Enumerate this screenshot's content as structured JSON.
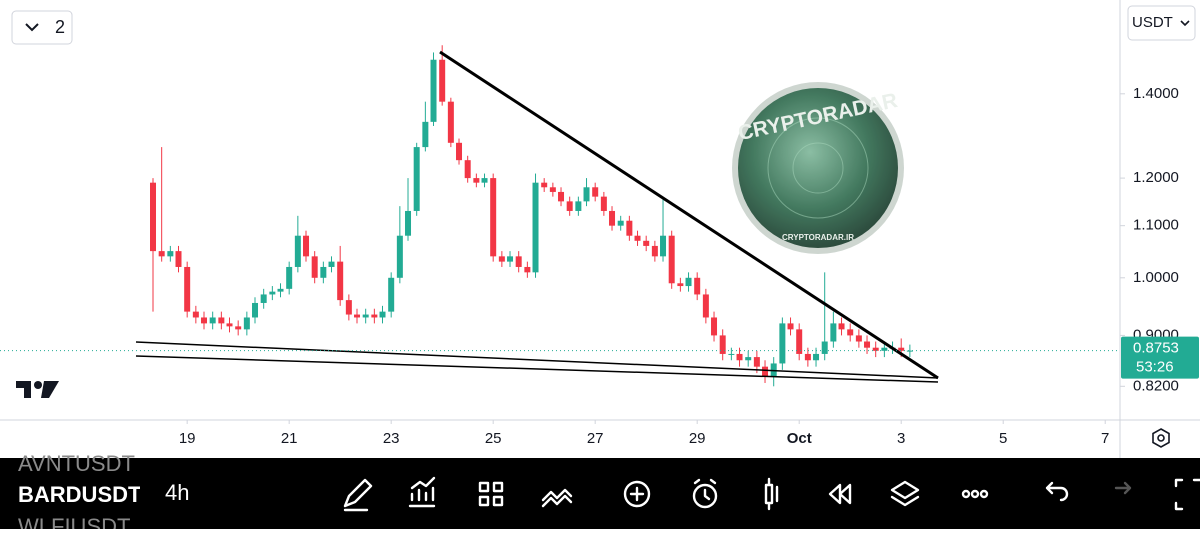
{
  "chart_data": {
    "type": "candlestick",
    "log_scale": true,
    "up_color": "#22ab94",
    "down_color": "#f23645",
    "xlim": [
      15.33,
      37.29
    ],
    "ylim": [
      0.771,
      1.662
    ],
    "xticks": [
      19,
      21,
      23,
      25,
      27,
      29,
      {
        "value": 31,
        "label": "Oct"
      },
      {
        "value": 33,
        "label": "3"
      },
      {
        "value": 35,
        "label": "5"
      },
      {
        "value": 37,
        "label": "7"
      }
    ],
    "yticks": [
      {
        "value": 1.4,
        "label": "1.4000"
      },
      {
        "value": 1.2,
        "label": "1.2000"
      },
      {
        "value": 1.1,
        "label": "1.1000"
      },
      {
        "value": 1.0,
        "label": "1.0000"
      },
      {
        "value": 0.9,
        "label": "0.9000"
      },
      {
        "value": 0.82,
        "label": "0.8200"
      }
    ],
    "x": [
      18.33,
      18.5,
      18.67,
      18.83,
      19,
      19.17,
      19.33,
      19.5,
      19.67,
      19.83,
      20,
      20.17,
      20.33,
      20.5,
      20.67,
      20.83,
      21,
      21.17,
      21.33,
      21.5,
      21.67,
      21.83,
      22,
      22.17,
      22.33,
      22.5,
      22.67,
      22.83,
      23,
      23.17,
      23.33,
      23.5,
      23.67,
      23.83,
      24,
      24.17,
      24.33,
      24.5,
      24.67,
      24.83,
      25,
      25.17,
      25.33,
      25.5,
      25.67,
      25.83,
      26,
      26.17,
      26.33,
      26.5,
      26.67,
      26.83,
      27,
      27.17,
      27.33,
      27.5,
      27.67,
      27.83,
      28,
      28.17,
      28.33,
      28.5,
      28.67,
      28.83,
      29,
      29.17,
      29.33,
      29.5,
      29.67,
      29.83,
      30,
      30.17,
      30.33,
      30.5,
      30.67,
      30.83,
      31,
      31.17,
      31.33,
      31.5,
      31.67,
      31.83,
      32,
      32.17,
      32.33,
      32.5,
      32.67,
      32.83,
      33,
      33.17
    ],
    "open": [
      1.19,
      1.05,
      1.04,
      1.05,
      1.02,
      0.94,
      0.93,
      0.92,
      0.93,
      0.92,
      0.915,
      0.91,
      0.93,
      0.955,
      0.97,
      0.975,
      0.98,
      1.02,
      1.08,
      1.04,
      1.0,
      1.02,
      1.03,
      0.96,
      0.935,
      0.93,
      0.935,
      0.93,
      0.94,
      1.0,
      1.08,
      1.13,
      1.27,
      1.33,
      1.49,
      1.38,
      1.28,
      1.24,
      1.2,
      1.19,
      1.2,
      1.04,
      1.03,
      1.04,
      1.02,
      1.01,
      1.19,
      1.18,
      1.17,
      1.15,
      1.13,
      1.15,
      1.18,
      1.16,
      1.13,
      1.1,
      1.11,
      1.08,
      1.07,
      1.06,
      1.04,
      1.08,
      0.99,
      0.985,
      1.0,
      0.97,
      0.93,
      0.9,
      0.87,
      0.87,
      0.86,
      0.865,
      0.85,
      0.835,
      0.855,
      0.92,
      0.91,
      0.87,
      0.86,
      0.87,
      0.89,
      0.92,
      0.91,
      0.9,
      0.89,
      0.88,
      0.875,
      0.88,
      0.88,
      0.875
    ],
    "high": [
      1.2,
      1.27,
      1.06,
      1.06,
      1.03,
      0.95,
      0.94,
      0.94,
      0.94,
      0.93,
      0.925,
      0.94,
      0.965,
      0.98,
      0.985,
      0.99,
      1.03,
      1.12,
      1.09,
      1.05,
      1.03,
      1.04,
      1.06,
      0.97,
      0.945,
      0.945,
      0.945,
      0.95,
      1.01,
      1.14,
      1.2,
      1.28,
      1.38,
      1.51,
      1.53,
      1.39,
      1.29,
      1.25,
      1.21,
      1.21,
      1.21,
      1.05,
      1.05,
      1.05,
      1.03,
      1.21,
      1.2,
      1.19,
      1.18,
      1.16,
      1.16,
      1.2,
      1.19,
      1.17,
      1.14,
      1.12,
      1.12,
      1.09,
      1.08,
      1.07,
      1.16,
      1.09,
      1.0,
      1.01,
      1.01,
      0.98,
      0.94,
      0.91,
      0.88,
      0.88,
      0.875,
      0.875,
      0.86,
      0.865,
      0.93,
      0.93,
      0.92,
      0.88,
      0.88,
      1.01,
      0.94,
      0.93,
      0.92,
      0.91,
      0.9,
      0.89,
      0.89,
      0.89,
      0.895,
      0.885
    ],
    "low": [
      0.94,
      1.03,
      1.03,
      1.01,
      0.93,
      0.92,
      0.91,
      0.91,
      0.91,
      0.905,
      0.9,
      0.9,
      0.92,
      0.945,
      0.96,
      0.965,
      0.97,
      1.01,
      1.03,
      0.99,
      0.99,
      1.01,
      0.95,
      0.925,
      0.92,
      0.92,
      0.92,
      0.92,
      0.93,
      0.99,
      1.07,
      1.12,
      1.26,
      1.32,
      1.37,
      1.27,
      1.23,
      1.19,
      1.18,
      1.18,
      1.03,
      1.02,
      1.02,
      1.01,
      1.0,
      1.0,
      1.17,
      1.16,
      1.14,
      1.12,
      1.12,
      1.14,
      1.15,
      1.12,
      1.09,
      1.09,
      1.07,
      1.06,
      1.05,
      1.03,
      1.03,
      0.98,
      0.975,
      0.975,
      0.96,
      0.92,
      0.89,
      0.86,
      0.86,
      0.85,
      0.85,
      0.84,
      0.825,
      0.82,
      0.845,
      0.9,
      0.86,
      0.85,
      0.85,
      0.86,
      0.88,
      0.9,
      0.89,
      0.88,
      0.87,
      0.865,
      0.865,
      0.87,
      0.865,
      0.865
    ],
    "close": [
      1.05,
      1.04,
      1.05,
      1.02,
      0.94,
      0.93,
      0.92,
      0.93,
      0.92,
      0.915,
      0.91,
      0.93,
      0.955,
      0.97,
      0.975,
      0.98,
      1.02,
      1.08,
      1.04,
      1.0,
      1.02,
      1.03,
      0.96,
      0.935,
      0.93,
      0.935,
      0.93,
      0.94,
      1.0,
      1.08,
      1.13,
      1.27,
      1.33,
      1.49,
      1.38,
      1.28,
      1.24,
      1.2,
      1.19,
      1.2,
      1.04,
      1.03,
      1.04,
      1.02,
      1.01,
      1.19,
      1.18,
      1.17,
      1.15,
      1.13,
      1.15,
      1.18,
      1.16,
      1.13,
      1.1,
      1.11,
      1.08,
      1.07,
      1.06,
      1.04,
      1.08,
      0.99,
      0.985,
      1.0,
      0.97,
      0.93,
      0.9,
      0.87,
      0.87,
      0.86,
      0.865,
      0.85,
      0.835,
      0.855,
      0.92,
      0.91,
      0.87,
      0.86,
      0.87,
      0.89,
      0.92,
      0.91,
      0.9,
      0.89,
      0.88,
      0.875,
      0.88,
      0.88,
      0.875,
      0.8753
    ],
    "countdown": "53:26"
  },
  "ui": {
    "interval_count": "2",
    "currency": "USDT",
    "watermark": "CRYPTORADAR",
    "watermark_site": "CRYPTORADAR.IR",
    "symbols": [
      "AVNTUSDT",
      "BARDUSDT",
      "WLFIUSDT"
    ],
    "timeframe": "4h"
  }
}
